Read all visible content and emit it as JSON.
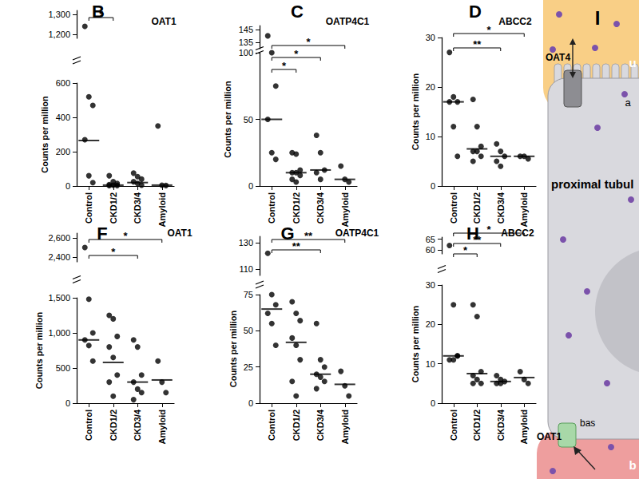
{
  "chart_data": [
    {
      "type": "scatter",
      "panel": "B",
      "title": "OAT1",
      "y_label": "Counts per million",
      "categories": [
        "Control",
        "CKD1/2",
        "CKD3/4",
        "Amyloid"
      ],
      "points": [
        [
          1240,
          520,
          470,
          270,
          60,
          20
        ],
        [
          60,
          25,
          15,
          8,
          5,
          3,
          2
        ],
        [
          75,
          55,
          40,
          25,
          15,
          5
        ],
        [
          350,
          5,
          3
        ]
      ],
      "center_lines": [
        265,
        5,
        20,
        5
      ],
      "ylim": [
        [
          0,
          600
        ],
        [
          1180,
          1320
        ]
      ],
      "yticks": [
        [
          0,
          200,
          400,
          600
        ],
        [
          1200,
          1300
        ]
      ],
      "significance": [
        {
          "from": "Control",
          "to": "CKD1/2",
          "label": "*"
        }
      ],
      "color": "#000000",
      "marker": "circle"
    },
    {
      "type": "scatter",
      "panel": "C",
      "title": "OATP4C1",
      "y_label": "Counts per million",
      "categories": [
        "Control",
        "CKD1/2",
        "CKD3/4",
        "Amyloid"
      ],
      "points": [
        [
          140,
          100,
          75,
          50,
          25,
          20
        ],
        [
          25,
          24,
          12,
          10,
          10,
          8,
          5,
          3
        ],
        [
          38,
          25,
          12,
          10,
          5
        ],
        [
          15,
          5,
          3
        ]
      ],
      "center_lines": [
        50,
        10,
        12,
        5
      ],
      "ylim": [
        [
          0,
          100
        ],
        [
          130,
          148
        ]
      ],
      "yticks": [
        [
          0,
          50,
          100
        ],
        [
          135,
          145
        ]
      ],
      "significance": [
        {
          "from": "Control",
          "to": "Amyloid",
          "label": "*"
        },
        {
          "from": "Control",
          "to": "CKD3/4",
          "label": "*"
        },
        {
          "from": "Control",
          "to": "CKD1/2",
          "label": "*"
        }
      ],
      "color": "#000000",
      "marker": "circle"
    },
    {
      "type": "scatter",
      "panel": "D",
      "title": "ABCC2",
      "y_label": "Counts per million",
      "categories": [
        "Control",
        "CKD1/2",
        "CKD3/4",
        "Amyloid"
      ],
      "points": [
        [
          27,
          18,
          17,
          17,
          12,
          6
        ],
        [
          17.5,
          12,
          8,
          7,
          7,
          6,
          5
        ],
        [
          8.5,
          7,
          6,
          5,
          4
        ],
        [
          6,
          6,
          5.5
        ]
      ],
      "center_lines": [
        17,
        7.5,
        6,
        6
      ],
      "ylim": [
        [
          0,
          30
        ]
      ],
      "yticks": [
        [
          0,
          10,
          20,
          30
        ]
      ],
      "significance": [
        {
          "from": "Control",
          "to": "Amyloid",
          "label": "*"
        },
        {
          "from": "Control",
          "to": "CKD3/4",
          "label": "**"
        }
      ],
      "color": "#000000",
      "marker": "circle"
    },
    {
      "type": "scatter",
      "panel": "F",
      "title": "OAT1",
      "y_label": "Counts per million",
      "categories": [
        "Control",
        "CKD1/2",
        "CKD3/4",
        "Amyloid"
      ],
      "points": [
        [
          2500,
          1480,
          1000,
          900,
          820,
          600
        ],
        [
          1250,
          1200,
          950,
          800,
          650,
          400,
          300,
          100
        ],
        [
          900,
          800,
          400,
          300,
          200,
          150,
          50
        ],
        [
          600,
          300,
          150
        ]
      ],
      "center_lines": [
        900,
        580,
        300,
        330
      ],
      "ylim": [
        [
          0,
          1500
        ],
        [
          2350,
          2650
        ]
      ],
      "yticks": [
        [
          0,
          500,
          1000,
          1500
        ],
        [
          2400,
          2600
        ]
      ],
      "significance": [
        {
          "from": "Control",
          "to": "Amyloid",
          "label": "*"
        },
        {
          "from": "Control",
          "to": "CKD3/4",
          "label": "*"
        }
      ],
      "color": "#000000",
      "marker": "circle"
    },
    {
      "type": "scatter",
      "panel": "G",
      "title": "OATP4C1",
      "y_label": "Counts per million",
      "categories": [
        "Control",
        "CKD1/2",
        "CKD3/4",
        "Amyloid"
      ],
      "points": [
        [
          122,
          75,
          68,
          62,
          55,
          40
        ],
        [
          70,
          62,
          57,
          45,
          40,
          30,
          15,
          5
        ],
        [
          55,
          30,
          25,
          20,
          18,
          15,
          10
        ],
        [
          22,
          12,
          5
        ]
      ],
      "center_lines": [
        65,
        42,
        20,
        13
      ],
      "ylim": [
        [
          0,
          75
        ],
        [
          105,
          135
        ]
      ],
      "yticks": [
        [
          0,
          25,
          50,
          75
        ],
        [
          110,
          130
        ]
      ],
      "significance": [
        {
          "from": "Control",
          "to": "Amyloid",
          "label": "**"
        },
        {
          "from": "Control",
          "to": "CKD3/4",
          "label": "**"
        }
      ],
      "color": "#000000",
      "marker": "circle"
    },
    {
      "type": "scatter",
      "panel": "H",
      "title": "ABCC2",
      "y_label": "Counts per million",
      "categories": [
        "Control",
        "CKD1/2",
        "CKD3/4",
        "Amyloid"
      ],
      "points": [
        [
          62,
          25,
          12,
          11,
          11,
          12
        ],
        [
          25,
          22,
          8,
          7,
          6,
          5,
          5
        ],
        [
          7,
          6,
          5.5,
          5,
          5
        ],
        [
          8,
          6,
          5
        ]
      ],
      "center_lines": [
        12,
        7.5,
        5.5,
        6.5
      ],
      "ylim": [
        [
          0,
          30
        ],
        [
          58,
          66
        ]
      ],
      "yticks": [
        [
          0,
          10,
          20,
          30
        ],
        [
          60,
          65
        ]
      ],
      "significance": [
        {
          "from": "Control",
          "to": "Amyloid",
          "label": "*"
        },
        {
          "from": "Control",
          "to": "CKD3/4",
          "label": "**"
        },
        {
          "from": "Control",
          "to": "CKD1/2",
          "label": "*"
        }
      ],
      "color": "#000000",
      "marker": "circle"
    }
  ],
  "diagram": {
    "label": "I",
    "apical_transporter": "OAT4",
    "basolateral_transporter": "OAT1",
    "cell": "proximal tubul",
    "lumen": "u",
    "apical": "a",
    "basolateral": "bas",
    "blood": "b"
  }
}
